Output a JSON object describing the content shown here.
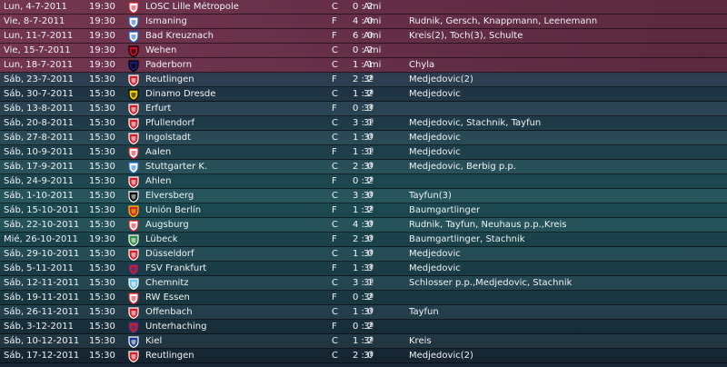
{
  "matches": [
    {
      "date": "Lun, 4-7-2011",
      "time": "19:30",
      "team": "LOSC Lille Métropole",
      "home_away": "C",
      "score": "0 : 2",
      "competition": "Ami",
      "scorers": "",
      "kind": "friendly",
      "badge": {
        "icon": "losc-crest-icon",
        "main": "#ffffff",
        "accent": "#d41c2a"
      }
    },
    {
      "date": "Vie, 8-7-2011",
      "time": "19:30",
      "team": "Ismaning",
      "home_away": "F",
      "score": "4 : 0",
      "competition": "Ami",
      "scorers": "Rudnik, Gersch, Knappmann, Leenemann",
      "kind": "friendly",
      "badge": {
        "icon": "ismaning-crest-icon",
        "main": "#ffffff",
        "accent": "#2a5fb0"
      }
    },
    {
      "date": "Lun, 11-7-2011",
      "time": "19:30",
      "team": "Bad Kreuznach",
      "home_away": "F",
      "score": "6 : 0",
      "competition": "Ami",
      "scorers": "Kreis(2), Toch(3), Schulte",
      "kind": "friendly",
      "badge": {
        "icon": "bad-kreuznach-crest-icon",
        "main": "#ffffff",
        "accent": "#1f5fd1"
      }
    },
    {
      "date": "Vie, 15-7-2011",
      "time": "19:30",
      "team": "Wehen",
      "home_away": "C",
      "score": "0 : 2",
      "competition": "Ami",
      "scorers": "",
      "kind": "friendly",
      "badge": {
        "icon": "wehen-crest-icon",
        "main": "#c8102e",
        "accent": "#000000"
      }
    },
    {
      "date": "Lun, 18-7-2011",
      "time": "19:30",
      "team": "Paderborn",
      "home_away": "C",
      "score": "1 : 1",
      "competition": "Ami",
      "scorers": "Chyla",
      "kind": "friendly",
      "badge": {
        "icon": "paderborn-crest-icon",
        "main": "#1a1a6e",
        "accent": "#000000"
      }
    },
    {
      "date": "Sáb, 23-7-2011",
      "time": "15:30",
      "team": "Reutlingen",
      "home_away": "F",
      "score": "2 : 2",
      "competition": "3ª",
      "scorers": "Medjedovic(2)",
      "kind": "league",
      "badge": {
        "icon": "reutlingen-crest-icon",
        "main": "#d41c2a",
        "accent": "#ffffff"
      }
    },
    {
      "date": "Sáb, 30-7-2011",
      "time": "15:30",
      "team": "Dinamo Dresde",
      "home_away": "C",
      "score": "1 : 2",
      "competition": "3ª",
      "scorers": "Medjedovic",
      "kind": "league",
      "badge": {
        "icon": "dresden-crest-icon",
        "main": "#f2d000",
        "accent": "#000000"
      }
    },
    {
      "date": "Sáb, 13-8-2011",
      "time": "15:30",
      "team": "Erfurt",
      "home_away": "F",
      "score": "0 : 3",
      "competition": "3ª",
      "scorers": "",
      "kind": "league",
      "badge": {
        "icon": "erfurt-crest-icon",
        "main": "#d41c2a",
        "accent": "#ffffff"
      }
    },
    {
      "date": "Sáb, 20-8-2011",
      "time": "15:30",
      "team": "Pfullendorf",
      "home_away": "C",
      "score": "3 : 1",
      "competition": "3ª",
      "scorers": "Medjedovic, Stachnik, Tayfun",
      "kind": "league",
      "badge": {
        "icon": "pfullendorf-crest-icon",
        "main": "#d41c2a",
        "accent": "#ffffff"
      }
    },
    {
      "date": "Sáb, 27-8-2011",
      "time": "15:30",
      "team": "Ingolstadt",
      "home_away": "C",
      "score": "1 : 0",
      "competition": "3ª",
      "scorers": "Medjedovic",
      "kind": "league",
      "badge": {
        "icon": "ingolstadt-crest-icon",
        "main": "#d41c2a",
        "accent": "#ffffff"
      }
    },
    {
      "date": "Sáb, 10-9-2011",
      "time": "15:30",
      "team": "Aalen",
      "home_away": "F",
      "score": "1 : 1",
      "competition": "3ª",
      "scorers": "Medjedovic",
      "kind": "league",
      "badge": {
        "icon": "aalen-crest-icon",
        "main": "#ffffff",
        "accent": "#d41c2a"
      }
    },
    {
      "date": "Sáb, 17-9-2011",
      "time": "15:30",
      "team": "Stuttgarter K.",
      "home_away": "C",
      "score": "2 : 0",
      "competition": "3ª",
      "scorers": "Medjedovic, Berbig p.p.",
      "kind": "league",
      "badge": {
        "icon": "stuttgarter-kickers-crest-icon",
        "main": "#ffffff",
        "accent": "#2a6fd1"
      }
    },
    {
      "date": "Sáb, 24-9-2011",
      "time": "15:30",
      "team": "Ahlen",
      "home_away": "F",
      "score": "0 : 2",
      "competition": "3ª",
      "scorers": "",
      "kind": "league",
      "badge": {
        "icon": "ahlen-crest-icon",
        "main": "#d41c2a",
        "accent": "#ffffff"
      }
    },
    {
      "date": "Sáb, 1-10-2011",
      "time": "15:30",
      "team": "Elversberg",
      "home_away": "C",
      "score": "3 : 0",
      "competition": "3ª",
      "scorers": "Tayfun(3)",
      "kind": "league",
      "badge": {
        "icon": "elversberg-crest-icon",
        "main": "#000000",
        "accent": "#ffffff"
      }
    },
    {
      "date": "Sáb, 15-10-2011",
      "time": "15:30",
      "team": "Unión Berlín",
      "home_away": "F",
      "score": "1 : 2",
      "competition": "3ª",
      "scorers": "Baumgartlinger",
      "kind": "league",
      "badge": {
        "icon": "union-berlin-crest-icon",
        "main": "#d41c2a",
        "accent": "#f2d000"
      }
    },
    {
      "date": "Sáb, 22-10-2011",
      "time": "15:30",
      "team": "Augsburg",
      "home_away": "C",
      "score": "4 : 0",
      "competition": "3ª",
      "scorers": "Rudnik, Tayfun, Neuhaus p.p.,Kreis",
      "kind": "league",
      "badge": {
        "icon": "augsburg-crest-icon",
        "main": "#ffffff",
        "accent": "#d41c2a"
      }
    },
    {
      "date": "Mié, 26-10-2011",
      "time": "19:30",
      "team": "Lübeck",
      "home_away": "F",
      "score": "2 : 0",
      "competition": "3ª",
      "scorers": "Baumgartlinger, Stachnik",
      "kind": "league",
      "badge": {
        "icon": "lubeck-crest-icon",
        "main": "#2e8b3e",
        "accent": "#ffffff"
      }
    },
    {
      "date": "Sáb, 29-10-2011",
      "time": "15:30",
      "team": "Düsseldorf",
      "home_away": "C",
      "score": "1 : 0",
      "competition": "3ª",
      "scorers": "Medjedovic",
      "kind": "league",
      "badge": {
        "icon": "dusseldorf-crest-icon",
        "main": "#d41c2a",
        "accent": "#ffffff"
      }
    },
    {
      "date": "Sáb, 5-11-2011",
      "time": "15:30",
      "team": "FSV Frankfurt",
      "home_away": "F",
      "score": "1 : 3",
      "competition": "3ª",
      "scorers": "Medjedovic",
      "kind": "league",
      "badge": {
        "icon": "fsv-frankfurt-crest-icon",
        "main": "#d41c2a",
        "accent": "#1a3a8a"
      }
    },
    {
      "date": "Sáb, 12-11-2011",
      "time": "15:30",
      "team": "Chemnitz",
      "home_away": "C",
      "score": "3 : 1",
      "competition": "3ª",
      "scorers": "Schlosser p.p.,Medjedovic, Stachnik",
      "kind": "league",
      "badge": {
        "icon": "chemnitz-crest-icon",
        "main": "#6cc4f0",
        "accent": "#ffffff"
      }
    },
    {
      "date": "Sáb, 19-11-2011",
      "time": "15:30",
      "team": "RW Essen",
      "home_away": "F",
      "score": "0 : 2",
      "competition": "3ª",
      "scorers": "",
      "kind": "league",
      "badge": {
        "icon": "rw-essen-crest-icon",
        "main": "#ffffff",
        "accent": "#d41c2a"
      }
    },
    {
      "date": "Sáb, 26-11-2011",
      "time": "15:30",
      "team": "Offenbach",
      "home_away": "C",
      "score": "1 : 0",
      "competition": "3ª",
      "scorers": "Tayfun",
      "kind": "league",
      "badge": {
        "icon": "offenbach-crest-icon",
        "main": "#d41c2a",
        "accent": "#ffffff"
      }
    },
    {
      "date": "Sáb, 3-12-2011",
      "time": "15:30",
      "team": "Unterhaching",
      "home_away": "F",
      "score": "0 : 2",
      "competition": "3ª",
      "scorers": "",
      "kind": "league",
      "badge": {
        "icon": "unterhaching-crest-icon",
        "main": "#d41c2a",
        "accent": "#1a3a8a"
      }
    },
    {
      "date": "Sáb, 10-12-2011",
      "time": "15:30",
      "team": "Kiel",
      "home_away": "C",
      "score": "1 : 2",
      "competition": "3ª",
      "scorers": "Kreis",
      "kind": "league",
      "badge": {
        "icon": "kiel-crest-icon",
        "main": "#1a3a8a",
        "accent": "#ffffff"
      }
    },
    {
      "date": "Sáb, 17-12-2011",
      "time": "15:30",
      "team": "Reutlingen",
      "home_away": "C",
      "score": "2 : 0",
      "competition": "3ª",
      "scorers": "Medjedovic(2)",
      "kind": "league",
      "badge": {
        "icon": "reutlingen-crest-icon",
        "main": "#d41c2a",
        "accent": "#ffffff"
      }
    }
  ]
}
